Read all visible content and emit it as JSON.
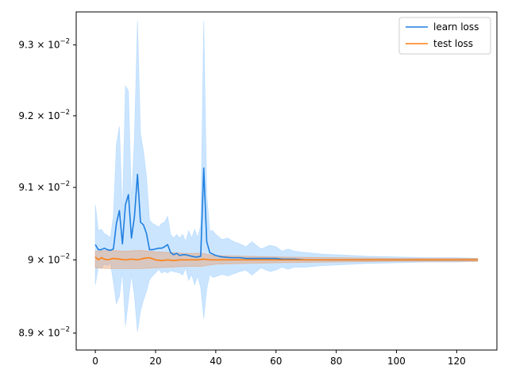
{
  "chart_data": {
    "type": "line",
    "title": "",
    "xlabel": "",
    "ylabel": "",
    "yscale": "log",
    "xlim": [
      -6.35,
      133.35
    ],
    "ylim": [
      0.08877,
      0.09347
    ],
    "x_ticks": [
      0,
      20,
      40,
      60,
      80,
      100,
      120
    ],
    "x_tick_labels": [
      "0",
      "20",
      "40",
      "60",
      "80",
      "100",
      "120"
    ],
    "y_ticks": [
      {
        "value": 0.089,
        "mantissa": "8.9",
        "base": "10",
        "exp": "−2"
      },
      {
        "value": 0.09,
        "mantissa": "9",
        "base": "10",
        "exp": "−2"
      },
      {
        "value": 0.091,
        "mantissa": "9.1",
        "base": "10",
        "exp": "−2"
      },
      {
        "value": 0.092,
        "mantissa": "9.2",
        "base": "10",
        "exp": "−2"
      },
      {
        "value": 0.093,
        "mantissa": "9.3",
        "base": "10",
        "exp": "−2"
      }
    ],
    "grid": false,
    "legend_position": "top-right",
    "series": [
      {
        "name": "learn loss",
        "color": "#1f7fe0",
        "band_color": "#a8d4ff",
        "mean": [
          [
            0,
            0.09021
          ],
          [
            1,
            0.09014
          ],
          [
            2,
            0.09014
          ],
          [
            3,
            0.09016
          ],
          [
            4,
            0.09014
          ],
          [
            5,
            0.09013
          ],
          [
            6,
            0.09015
          ],
          [
            7,
            0.0905
          ],
          [
            8,
            0.09068
          ],
          [
            9,
            0.09022
          ],
          [
            10,
            0.09076
          ],
          [
            11,
            0.0909
          ],
          [
            12,
            0.0903
          ],
          [
            13,
            0.0906
          ],
          [
            14,
            0.09118
          ],
          [
            15,
            0.09052
          ],
          [
            16,
            0.09048
          ],
          [
            17,
            0.09036
          ],
          [
            18,
            0.09014
          ],
          [
            19,
            0.09014
          ],
          [
            20,
            0.09015
          ],
          [
            21,
            0.09016
          ],
          [
            22,
            0.09016
          ],
          [
            23,
            0.09018
          ],
          [
            24,
            0.09021
          ],
          [
            25,
            0.0901
          ],
          [
            26,
            0.09007
          ],
          [
            27,
            0.09009
          ],
          [
            28,
            0.09006
          ],
          [
            29,
            0.09007
          ],
          [
            30,
            0.09007
          ],
          [
            31,
            0.09006
          ],
          [
            32,
            0.09005
          ],
          [
            33,
            0.09004
          ],
          [
            34,
            0.09004
          ],
          [
            35,
            0.09005
          ],
          [
            36,
            0.09127
          ],
          [
            37,
            0.09025
          ],
          [
            38,
            0.0901
          ],
          [
            39,
            0.09008
          ],
          [
            40,
            0.09006
          ],
          [
            42,
            0.09004
          ],
          [
            45,
            0.09003
          ],
          [
            48,
            0.09003
          ],
          [
            50,
            0.09002
          ],
          [
            55,
            0.09002
          ],
          [
            60,
            0.09002
          ],
          [
            62,
            0.09001
          ],
          [
            66,
            0.09001
          ],
          [
            70,
            0.09
          ],
          [
            80,
            0.09
          ],
          [
            90,
            0.09
          ],
          [
            100,
            0.09
          ],
          [
            110,
            0.09
          ],
          [
            120,
            0.09
          ],
          [
            127,
            0.09
          ]
        ],
        "band_upper": [
          [
            0,
            0.09076
          ],
          [
            1,
            0.0904
          ],
          [
            2,
            0.09042
          ],
          [
            3,
            0.09036
          ],
          [
            4,
            0.09034
          ],
          [
            5,
            0.0903
          ],
          [
            6,
            0.0906
          ],
          [
            7,
            0.0916
          ],
          [
            8,
            0.09185
          ],
          [
            9,
            0.0906
          ],
          [
            10,
            0.09242
          ],
          [
            11,
            0.09235
          ],
          [
            12,
            0.0908
          ],
          [
            13,
            0.0917
          ],
          [
            14,
            0.09334
          ],
          [
            15,
            0.09175
          ],
          [
            16,
            0.0915
          ],
          [
            17,
            0.09115
          ],
          [
            18,
            0.09055
          ],
          [
            19,
            0.0905
          ],
          [
            20,
            0.09048
          ],
          [
            21,
            0.09045
          ],
          [
            22,
            0.0905
          ],
          [
            23,
            0.09052
          ],
          [
            24,
            0.0906
          ],
          [
            25,
            0.09035
          ],
          [
            26,
            0.0903
          ],
          [
            27,
            0.09035
          ],
          [
            28,
            0.0903
          ],
          [
            29,
            0.09035
          ],
          [
            30,
            0.09025
          ],
          [
            31,
            0.0904
          ],
          [
            32,
            0.0903
          ],
          [
            33,
            0.09042
          ],
          [
            34,
            0.0903
          ],
          [
            35,
            0.09048
          ],
          [
            36,
            0.09334
          ],
          [
            37,
            0.0909
          ],
          [
            38,
            0.0904
          ],
          [
            39,
            0.0904
          ],
          [
            40,
            0.09035
          ],
          [
            42,
            0.09028
          ],
          [
            44,
            0.0903
          ],
          [
            46,
            0.09025
          ],
          [
            48,
            0.09022
          ],
          [
            50,
            0.09018
          ],
          [
            52,
            0.09025
          ],
          [
            55,
            0.09015
          ],
          [
            58,
            0.0902
          ],
          [
            60,
            0.09018
          ],
          [
            62,
            0.09012
          ],
          [
            64,
            0.09015
          ],
          [
            66,
            0.09012
          ],
          [
            70,
            0.0901
          ],
          [
            75,
            0.09008
          ],
          [
            80,
            0.09007
          ],
          [
            90,
            0.09005
          ],
          [
            100,
            0.09004
          ],
          [
            110,
            0.09003
          ],
          [
            120,
            0.09003
          ],
          [
            127,
            0.09002
          ]
        ],
        "band_lower": [
          [
            0,
            0.08966
          ],
          [
            1,
            0.0899
          ],
          [
            2,
            0.08988
          ],
          [
            3,
            0.08994
          ],
          [
            4,
            0.08992
          ],
          [
            5,
            0.08996
          ],
          [
            6,
            0.0897
          ],
          [
            7,
            0.0894
          ],
          [
            8,
            0.0895
          ],
          [
            9,
            0.08985
          ],
          [
            10,
            0.0891
          ],
          [
            11,
            0.08945
          ],
          [
            12,
            0.0898
          ],
          [
            13,
            0.0895
          ],
          [
            14,
            0.08902
          ],
          [
            15,
            0.0893
          ],
          [
            16,
            0.08945
          ],
          [
            17,
            0.08957
          ],
          [
            18,
            0.08973
          ],
          [
            19,
            0.08978
          ],
          [
            20,
            0.08982
          ],
          [
            21,
            0.08987
          ],
          [
            22,
            0.08982
          ],
          [
            23,
            0.08984
          ],
          [
            24,
            0.08982
          ],
          [
            25,
            0.08985
          ],
          [
            26,
            0.08984
          ],
          [
            27,
            0.08983
          ],
          [
            28,
            0.08982
          ],
          [
            29,
            0.08979
          ],
          [
            30,
            0.08989
          ],
          [
            31,
            0.08972
          ],
          [
            32,
            0.0898
          ],
          [
            33,
            0.08966
          ],
          [
            34,
            0.08978
          ],
          [
            35,
            0.08962
          ],
          [
            36,
            0.0892
          ],
          [
            37,
            0.0896
          ],
          [
            38,
            0.0898
          ],
          [
            39,
            0.08976
          ],
          [
            40,
            0.08977
          ],
          [
            42,
            0.0898
          ],
          [
            44,
            0.08978
          ],
          [
            46,
            0.08981
          ],
          [
            48,
            0.08984
          ],
          [
            50,
            0.08986
          ],
          [
            52,
            0.08979
          ],
          [
            55,
            0.08989
          ],
          [
            58,
            0.08984
          ],
          [
            60,
            0.08986
          ],
          [
            62,
            0.0899
          ],
          [
            64,
            0.08987
          ],
          [
            66,
            0.0899
          ],
          [
            70,
            0.0899
          ],
          [
            75,
            0.08992
          ],
          [
            80,
            0.08993
          ],
          [
            90,
            0.08995
          ],
          [
            100,
            0.08996
          ],
          [
            110,
            0.08997
          ],
          [
            120,
            0.08997
          ],
          [
            127,
            0.08998
          ]
        ]
      },
      {
        "name": "test loss",
        "color": "#ff7f0e",
        "band_color": "#e8a070",
        "mean": [
          [
            0,
            0.09004
          ],
          [
            1,
            0.09
          ],
          [
            2,
            0.09003
          ],
          [
            3,
            0.09001
          ],
          [
            4,
            0.09
          ],
          [
            6,
            0.09002
          ],
          [
            8,
            0.09001
          ],
          [
            10,
            0.09
          ],
          [
            12,
            0.09001
          ],
          [
            14,
            0.09
          ],
          [
            16,
            0.09002
          ],
          [
            18,
            0.09003
          ],
          [
            20,
            0.09
          ],
          [
            22,
            0.08999
          ],
          [
            24,
            0.09
          ],
          [
            26,
            0.08999
          ],
          [
            28,
            0.09
          ],
          [
            30,
            0.09
          ],
          [
            32,
            0.09
          ],
          [
            34,
            0.09
          ],
          [
            36,
            0.09001
          ],
          [
            38,
            0.09
          ],
          [
            40,
            0.09
          ],
          [
            50,
            0.09
          ],
          [
            60,
            0.09
          ],
          [
            80,
            0.09
          ],
          [
            100,
            0.09
          ],
          [
            127,
            0.09
          ]
        ],
        "band_upper": [
          [
            0,
            0.09012
          ],
          [
            5,
            0.09013
          ],
          [
            10,
            0.09012
          ],
          [
            15,
            0.09013
          ],
          [
            20,
            0.09011
          ],
          [
            25,
            0.0901
          ],
          [
            30,
            0.09009
          ],
          [
            35,
            0.09009
          ],
          [
            40,
            0.09006
          ],
          [
            60,
            0.09004
          ],
          [
            80,
            0.09003
          ],
          [
            100,
            0.09002
          ],
          [
            127,
            0.09002
          ]
        ],
        "band_lower": [
          [
            0,
            0.08989
          ],
          [
            5,
            0.08988
          ],
          [
            10,
            0.08988
          ],
          [
            15,
            0.08988
          ],
          [
            20,
            0.08989
          ],
          [
            25,
            0.0899
          ],
          [
            30,
            0.08991
          ],
          [
            35,
            0.08991
          ],
          [
            40,
            0.08994
          ],
          [
            60,
            0.08996
          ],
          [
            80,
            0.08997
          ],
          [
            100,
            0.08998
          ],
          [
            127,
            0.08998
          ]
        ]
      }
    ]
  }
}
